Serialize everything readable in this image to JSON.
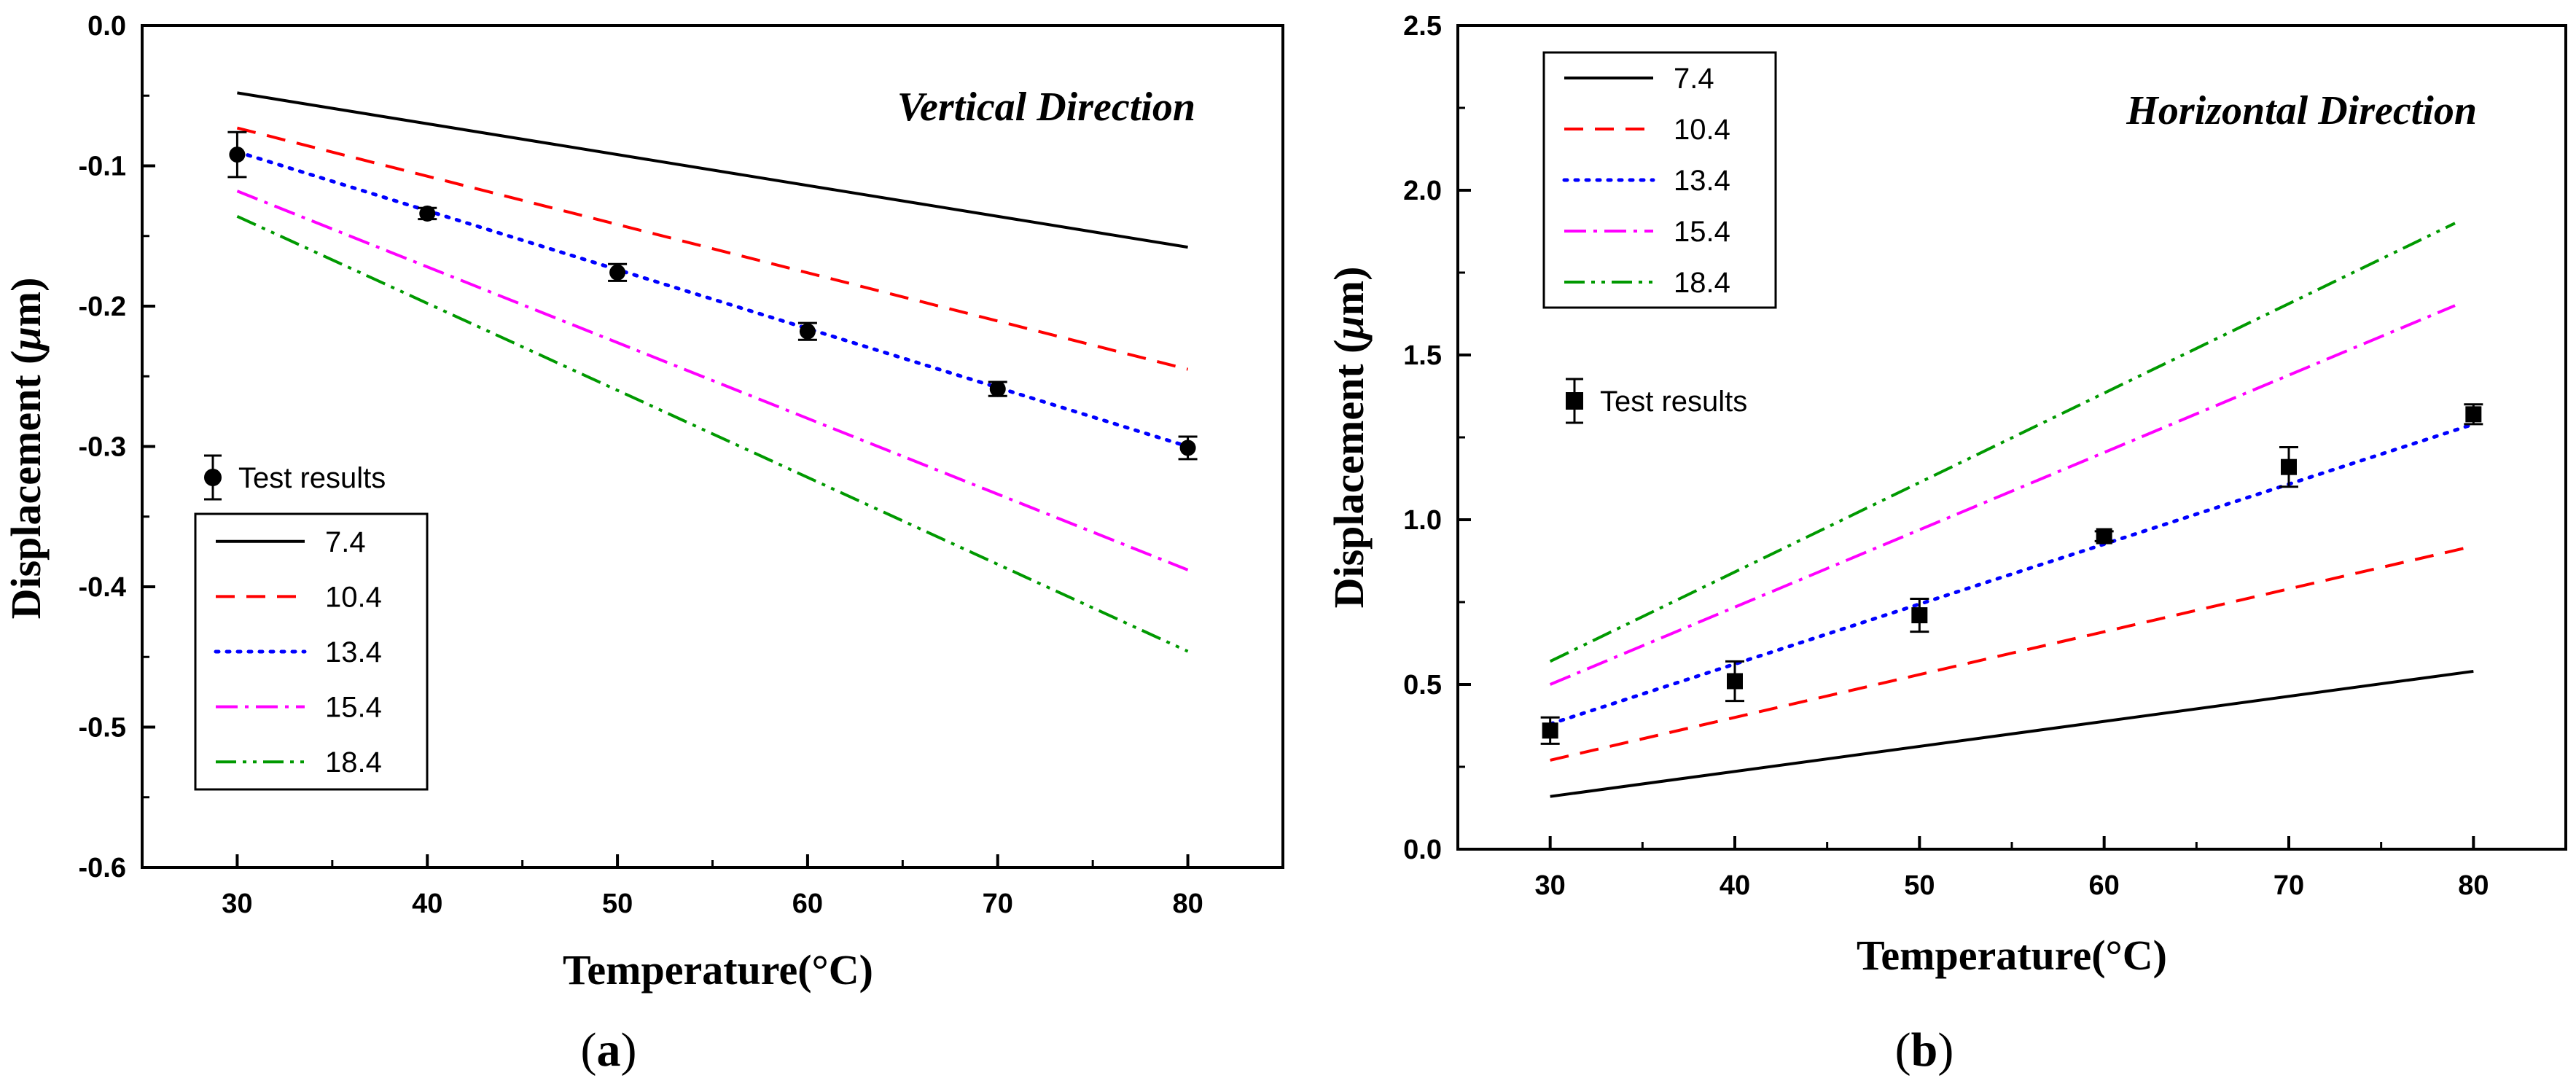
{
  "chart_data": [
    {
      "type": "line",
      "panel": "a",
      "caption_open": "(",
      "caption_label": "a",
      "caption_close": ")",
      "title": "Vertical Direction",
      "xlabel": "Temperature(°C)",
      "ylabel_prefix": "Displacement (",
      "ylabel_mu": "μ",
      "ylabel_suffix": "m)",
      "xlim": [
        25,
        85
      ],
      "ylim": [
        -0.6,
        0.0
      ],
      "xticks": [
        30,
        40,
        50,
        60,
        70,
        80
      ],
      "yticks": [
        0.0,
        -0.1,
        -0.2,
        -0.3,
        -0.4,
        -0.5,
        -0.6
      ],
      "ytick_labels": [
        "0.0",
        "-0.1",
        "-0.2",
        "-0.3",
        "-0.4",
        "-0.5",
        "-0.6"
      ],
      "series": [
        {
          "name": "7.4",
          "color": "#000000",
          "style": "solid",
          "x": [
            30,
            80
          ],
          "y": [
            -0.048,
            -0.158
          ]
        },
        {
          "name": "10.4",
          "color": "#ff0000",
          "style": "dash",
          "x": [
            30,
            80
          ],
          "y": [
            -0.073,
            -0.245
          ]
        },
        {
          "name": "13.4",
          "color": "#0000ff",
          "style": "dot",
          "x": [
            30,
            80
          ],
          "y": [
            -0.09,
            -0.3
          ]
        },
        {
          "name": "15.4",
          "color": "#ff00ff",
          "style": "dashdot",
          "x": [
            30,
            80
          ],
          "y": [
            -0.118,
            -0.388
          ]
        },
        {
          "name": "18.4",
          "color": "#009900",
          "style": "dashdotdot",
          "x": [
            30,
            80
          ],
          "y": [
            -0.136,
            -0.446
          ]
        }
      ],
      "test_results": {
        "label": "Test results",
        "marker": "circle",
        "x": [
          30,
          40,
          50,
          60,
          70,
          80
        ],
        "y": [
          -0.092,
          -0.134,
          -0.176,
          -0.218,
          -0.259,
          -0.301
        ],
        "err": [
          0.016,
          0.004,
          0.006,
          0.006,
          0.005,
          0.008
        ]
      }
    },
    {
      "type": "line",
      "panel": "b",
      "caption_open": "(",
      "caption_label": "b",
      "caption_close": ")",
      "title": "Horizontal Direction",
      "xlabel": "Temperature(°C)",
      "ylabel_prefix": "Displacement (",
      "ylabel_mu": "μ",
      "ylabel_suffix": "m)",
      "xlim": [
        25,
        85
      ],
      "ylim": [
        0.0,
        2.5
      ],
      "xticks": [
        30,
        40,
        50,
        60,
        70,
        80
      ],
      "yticks": [
        0.0,
        0.5,
        1.0,
        1.5,
        2.0,
        2.5
      ],
      "ytick_labels": [
        "0.0",
        "0.5",
        "1.0",
        "1.5",
        "2.0",
        "2.5"
      ],
      "series": [
        {
          "name": "7.4",
          "color": "#000000",
          "style": "solid",
          "x": [
            30,
            80
          ],
          "y": [
            0.16,
            0.54
          ]
        },
        {
          "name": "10.4",
          "color": "#ff0000",
          "style": "dash",
          "x": [
            30,
            80
          ],
          "y": [
            0.27,
            0.92
          ]
        },
        {
          "name": "13.4",
          "color": "#0000ff",
          "style": "dot",
          "x": [
            30,
            80
          ],
          "y": [
            0.38,
            1.29
          ]
        },
        {
          "name": "15.4",
          "color": "#ff00ff",
          "style": "dashdot",
          "x": [
            30,
            79
          ],
          "y": [
            0.5,
            1.65
          ]
        },
        {
          "name": "18.4",
          "color": "#009900",
          "style": "dashdotdot",
          "x": [
            30,
            79
          ],
          "y": [
            0.57,
            1.9
          ]
        }
      ],
      "test_results": {
        "label": "Test results",
        "marker": "square",
        "x": [
          30,
          40,
          50,
          60,
          70,
          80
        ],
        "y": [
          0.36,
          0.51,
          0.71,
          0.95,
          1.16,
          1.32
        ],
        "err": [
          0.04,
          0.06,
          0.05,
          0.015,
          0.06,
          0.03
        ]
      }
    }
  ]
}
